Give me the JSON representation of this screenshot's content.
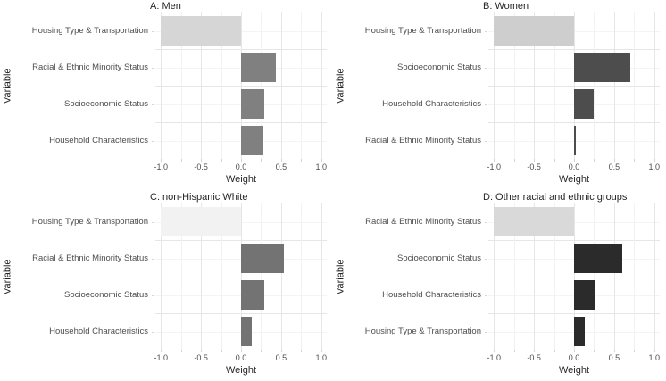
{
  "figure": {
    "background": "#ffffff",
    "x_axis_label": "Weight",
    "y_axis_label": "Variable",
    "x_tick_labels": [
      "-1.0",
      "-0.5",
      "0.0",
      "0.5",
      "1.0"
    ],
    "x_tick_values": [
      -1.0,
      -0.5,
      0.0,
      0.5,
      1.0
    ],
    "x_minor_tick_values": [
      -1.0,
      -0.75,
      -0.5,
      -0.25,
      0.0,
      0.25,
      0.5,
      0.75,
      1.0
    ]
  },
  "colors": {
    "grid_major": "#e6e6e6",
    "grid_minor": "#f2f2f2",
    "grid_row_center": "#f4f4f4",
    "axis_tick": "#d4d4d4",
    "tick_label_text": "#4d4d4d",
    "category_label_text": "#4d4d4d",
    "title_text": "#262626"
  },
  "chart_data": [
    {
      "type": "bar",
      "orientation": "horizontal",
      "title": "A: Men",
      "xlabel": "Weight",
      "ylabel": "Variable",
      "xlim": [
        -1.07,
        1.07
      ],
      "xticks": [
        -1.0,
        -0.5,
        0.0,
        0.5,
        1.0
      ],
      "grid": true,
      "legend": "none",
      "categories": [
        "Housing Type & Transportation",
        "Racial & Ethnic Minority Status",
        "Socioeconomic Status",
        "Household Characteristics"
      ],
      "values": [
        -1.0,
        0.43,
        0.29,
        0.28
      ],
      "bar_colors": [
        "#d6d6d6",
        "#808080",
        "#808080",
        "#808080"
      ]
    },
    {
      "type": "bar",
      "orientation": "horizontal",
      "title": "B: Women",
      "xlabel": "Weight",
      "ylabel": "Variable",
      "xlim": [
        -1.07,
        1.07
      ],
      "xticks": [
        -1.0,
        -0.5,
        0.0,
        0.5,
        1.0
      ],
      "grid": true,
      "legend": "none",
      "categories": [
        "Housing Type & Transportation",
        "Socioeconomic Status",
        "Household Characteristics",
        "Racial & Ethnic Minority Status"
      ],
      "values": [
        -1.0,
        0.7,
        0.25,
        0.02
      ],
      "bar_colors": [
        "#cecece",
        "#4d4d4d",
        "#4d4d4d",
        "#4d4d4d"
      ]
    },
    {
      "type": "bar",
      "orientation": "horizontal",
      "title": "C: non-Hispanic White",
      "xlabel": "Weight",
      "ylabel": "Variable",
      "xlim": [
        -1.07,
        1.07
      ],
      "xticks": [
        -1.0,
        -0.5,
        0.0,
        0.5,
        1.0
      ],
      "grid": true,
      "legend": "none",
      "categories": [
        "Housing Type & Transportation",
        "Racial & Ethnic Minority Status",
        "Socioeconomic Status",
        "Household Characteristics"
      ],
      "values": [
        -1.0,
        0.54,
        0.29,
        0.13
      ],
      "bar_colors": [
        "#f2f2f2",
        "#737373",
        "#737373",
        "#737373"
      ]
    },
    {
      "type": "bar",
      "orientation": "horizontal",
      "title": "D: Other racial and ethnic groups",
      "xlabel": "Weight",
      "ylabel": "Variable",
      "xlim": [
        -1.07,
        1.07
      ],
      "xticks": [
        -1.0,
        -0.5,
        0.0,
        0.5,
        1.0
      ],
      "grid": true,
      "legend": "none",
      "categories": [
        "Racial & Ethnic Minority Status",
        "Socioeconomic Status",
        "Household Characteristics",
        "Housing Type & Transportation"
      ],
      "values": [
        -1.0,
        0.6,
        0.26,
        0.13
      ],
      "bar_colors": [
        "#d9d9d9",
        "#2b2b2b",
        "#2b2b2b",
        "#2b2b2b"
      ]
    }
  ]
}
